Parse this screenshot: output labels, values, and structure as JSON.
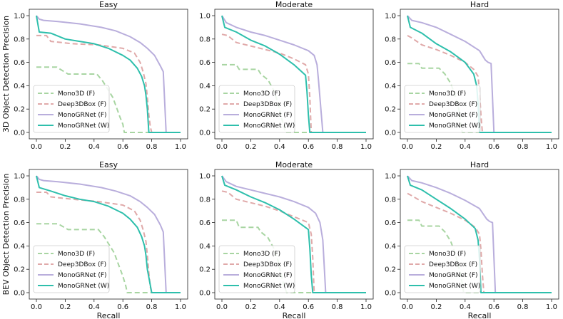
{
  "chart_data": {
    "type": "line",
    "rows": [
      {
        "ylabel": "3D Object Detection Precision",
        "xlabel": ""
      },
      {
        "ylabel": "BEV Object Detection Precision",
        "xlabel": "Recall"
      }
    ],
    "x_ticks": [
      "0.0",
      "0.2",
      "0.4",
      "0.6",
      "0.8",
      "1.0"
    ],
    "y_ticks": [
      "0.0",
      "0.2",
      "0.4",
      "0.6",
      "0.8",
      "1.0"
    ],
    "xlim": [
      0,
      1
    ],
    "ylim": [
      0,
      1
    ],
    "legend_position": "lower-left",
    "series_styles": [
      {
        "name": "Mono3D (F)",
        "color": "#a8d5a2",
        "dash": "dashed"
      },
      {
        "name": "Deep3DBox (F)",
        "color": "#e0a9a9",
        "dash": "dashed"
      },
      {
        "name": "MonoGRNet (F)",
        "color": "#b9aedc",
        "dash": "solid"
      },
      {
        "name": "MonoGRNet (W)",
        "color": "#2ebfac",
        "dash": "solid"
      }
    ],
    "panels": [
      {
        "title": "Easy",
        "row": 0,
        "col": 0,
        "series": [
          {
            "name": "Mono3D (F)",
            "x": [
              0,
              0.14,
              0.22,
              0.42,
              0.46,
              0.49,
              0.53,
              0.56,
              0.58,
              0.6,
              0.61,
              1.0
            ],
            "y": [
              0.56,
              0.56,
              0.5,
              0.5,
              0.44,
              0.38,
              0.3,
              0.2,
              0.13,
              0.07,
              0.0,
              0.0
            ]
          },
          {
            "name": "Deep3DBox (F)",
            "x": [
              0,
              0.07,
              0.1,
              0.25,
              0.43,
              0.6,
              0.68,
              0.72,
              0.74,
              0.76,
              0.77,
              0.78,
              0.79,
              0.8,
              1.0
            ],
            "y": [
              0.83,
              0.83,
              0.78,
              0.76,
              0.75,
              0.72,
              0.68,
              0.6,
              0.52,
              0.42,
              0.3,
              0.15,
              0.05,
              0.0,
              1e-09
            ]
          },
          {
            "name": "MonoGRNet (F)",
            "x": [
              0,
              0.02,
              0.05,
              0.15,
              0.3,
              0.45,
              0.55,
              0.65,
              0.72,
              0.77,
              0.82,
              0.86,
              0.88,
              0.9,
              1.0
            ],
            "y": [
              1.0,
              0.97,
              0.96,
              0.95,
              0.93,
              0.9,
              0.87,
              0.82,
              0.77,
              0.72,
              0.66,
              0.57,
              0.52,
              0.0,
              0.0
            ]
          },
          {
            "name": "MonoGRNet (W)",
            "x": [
              0,
              0.02,
              0.1,
              0.2,
              0.3,
              0.4,
              0.5,
              0.6,
              0.65,
              0.7,
              0.73,
              0.75,
              0.76,
              0.77,
              0.78,
              1.0
            ],
            "y": [
              1.0,
              0.86,
              0.85,
              0.8,
              0.78,
              0.76,
              0.72,
              0.66,
              0.62,
              0.55,
              0.48,
              0.4,
              0.32,
              0.2,
              0.0,
              0.0
            ]
          }
        ]
      },
      {
        "title": "Moderate",
        "row": 0,
        "col": 1,
        "series": [
          {
            "name": "Mono3D (F)",
            "x": [
              0,
              0.1,
              0.12,
              0.25,
              0.27,
              0.32,
              0.36,
              0.39,
              0.41,
              0.43,
              0.44,
              1.0
            ],
            "y": [
              0.58,
              0.58,
              0.54,
              0.54,
              0.5,
              0.45,
              0.36,
              0.25,
              0.14,
              0.05,
              0.0,
              0.0
            ]
          },
          {
            "name": "Deep3DBox (F)",
            "x": [
              0,
              0.04,
              0.1,
              0.2,
              0.3,
              0.4,
              0.5,
              0.58,
              0.6,
              0.61,
              0.62,
              1.0
            ],
            "y": [
              0.84,
              0.83,
              0.77,
              0.74,
              0.71,
              0.68,
              0.63,
              0.58,
              0.5,
              0.3,
              0.0,
              0.0
            ]
          },
          {
            "name": "MonoGRNet (F)",
            "x": [
              0,
              0.03,
              0.1,
              0.2,
              0.3,
              0.4,
              0.5,
              0.6,
              0.64,
              0.66,
              0.67,
              0.7,
              1.0
            ],
            "y": [
              1.0,
              0.94,
              0.9,
              0.86,
              0.83,
              0.79,
              0.75,
              0.7,
              0.66,
              0.58,
              0.45,
              0.0,
              0.0
            ]
          },
          {
            "name": "MonoGRNet (W)",
            "x": [
              0,
              0.02,
              0.1,
              0.2,
              0.3,
              0.4,
              0.5,
              0.58,
              0.59,
              0.6,
              0.61,
              1.0
            ],
            "y": [
              1.0,
              0.9,
              0.86,
              0.79,
              0.74,
              0.67,
              0.58,
              0.49,
              0.35,
              0.15,
              0.0,
              0.0
            ]
          }
        ]
      },
      {
        "title": "Hard",
        "row": 0,
        "col": 2,
        "series": [
          {
            "name": "Mono3D (F)",
            "x": [
              0,
              0.08,
              0.1,
              0.22,
              0.26,
              0.3,
              0.33,
              0.36,
              0.37,
              0.38,
              1.0
            ],
            "y": [
              0.59,
              0.59,
              0.55,
              0.55,
              0.5,
              0.42,
              0.32,
              0.18,
              0.08,
              0.0,
              0.0
            ]
          },
          {
            "name": "Deep3DBox (F)",
            "x": [
              0,
              0.03,
              0.1,
              0.2,
              0.3,
              0.4,
              0.46,
              0.49,
              0.5,
              0.51,
              0.52,
              1.0
            ],
            "y": [
              0.83,
              0.81,
              0.75,
              0.71,
              0.66,
              0.6,
              0.54,
              0.48,
              0.35,
              0.15,
              0.0,
              0.0
            ]
          },
          {
            "name": "MonoGRNet (F)",
            "x": [
              0,
              0.03,
              0.1,
              0.2,
              0.3,
              0.4,
              0.5,
              0.54,
              0.56,
              0.58,
              0.59,
              0.6,
              1.0
            ],
            "y": [
              1.0,
              0.96,
              0.94,
              0.9,
              0.84,
              0.78,
              0.7,
              0.62,
              0.6,
              0.59,
              0.3,
              0.0,
              0.0
            ]
          },
          {
            "name": "MonoGRNet (W)",
            "x": [
              0,
              0.02,
              0.1,
              0.2,
              0.3,
              0.4,
              0.46,
              0.48,
              0.49,
              0.5,
              1.0
            ],
            "y": [
              1.0,
              0.9,
              0.85,
              0.76,
              0.69,
              0.6,
              0.5,
              0.4,
              0.25,
              0.0,
              0.0
            ]
          }
        ]
      },
      {
        "title": "Easy",
        "row": 1,
        "col": 0,
        "series": [
          {
            "name": "Mono3D (F)",
            "x": [
              0,
              0.15,
              0.22,
              0.43,
              0.47,
              0.5,
              0.54,
              0.57,
              0.6,
              0.62,
              0.63,
              1.0
            ],
            "y": [
              0.59,
              0.59,
              0.54,
              0.54,
              0.48,
              0.42,
              0.34,
              0.24,
              0.14,
              0.06,
              0.0,
              0.0
            ]
          },
          {
            "name": "Deep3DBox (F)",
            "x": [
              0,
              0.07,
              0.1,
              0.25,
              0.43,
              0.6,
              0.68,
              0.72,
              0.74,
              0.76,
              0.77,
              0.78,
              0.79,
              0.8,
              1.0
            ],
            "y": [
              0.86,
              0.86,
              0.82,
              0.8,
              0.78,
              0.75,
              0.7,
              0.62,
              0.54,
              0.44,
              0.32,
              0.17,
              0.05,
              0.0,
              0.0
            ]
          },
          {
            "name": "MonoGRNet (F)",
            "x": [
              0,
              0.02,
              0.05,
              0.15,
              0.3,
              0.45,
              0.55,
              0.65,
              0.72,
              0.77,
              0.82,
              0.86,
              0.88,
              0.9,
              1.0
            ],
            "y": [
              1.0,
              0.97,
              0.96,
              0.95,
              0.93,
              0.9,
              0.87,
              0.83,
              0.78,
              0.73,
              0.67,
              0.58,
              0.52,
              0.0,
              0.0
            ]
          },
          {
            "name": "MonoGRNet (W)",
            "x": [
              0,
              0.02,
              0.1,
              0.2,
              0.3,
              0.4,
              0.5,
              0.6,
              0.65,
              0.7,
              0.73,
              0.75,
              0.76,
              0.77,
              0.8,
              1.0
            ],
            "y": [
              1.0,
              0.9,
              0.87,
              0.83,
              0.8,
              0.78,
              0.74,
              0.68,
              0.63,
              0.56,
              0.48,
              0.4,
              0.32,
              0.2,
              0.0,
              0.0
            ]
          }
        ]
      },
      {
        "title": "Moderate",
        "row": 1,
        "col": 1,
        "series": [
          {
            "name": "Mono3D (F)",
            "x": [
              0,
              0.1,
              0.12,
              0.25,
              0.27,
              0.32,
              0.36,
              0.39,
              0.41,
              0.43,
              0.45,
              1.0
            ],
            "y": [
              0.62,
              0.62,
              0.56,
              0.56,
              0.52,
              0.47,
              0.38,
              0.27,
              0.16,
              0.06,
              0.0,
              0.0
            ]
          },
          {
            "name": "Deep3DBox (F)",
            "x": [
              0,
              0.04,
              0.1,
              0.2,
              0.3,
              0.4,
              0.5,
              0.6,
              0.62,
              0.63,
              0.64,
              1.0
            ],
            "y": [
              0.87,
              0.86,
              0.8,
              0.77,
              0.74,
              0.7,
              0.65,
              0.6,
              0.5,
              0.3,
              0.0,
              0.0
            ]
          },
          {
            "name": "MonoGRNet (F)",
            "x": [
              0,
              0.03,
              0.1,
              0.2,
              0.3,
              0.4,
              0.5,
              0.6,
              0.65,
              0.68,
              0.7,
              0.72,
              1.0
            ],
            "y": [
              1.0,
              0.95,
              0.91,
              0.88,
              0.85,
              0.82,
              0.78,
              0.73,
              0.68,
              0.6,
              0.45,
              0.0,
              0.0
            ]
          },
          {
            "name": "MonoGRNet (W)",
            "x": [
              0,
              0.02,
              0.1,
              0.2,
              0.3,
              0.4,
              0.5,
              0.6,
              0.61,
              0.62,
              0.63,
              1.0
            ],
            "y": [
              1.0,
              0.92,
              0.88,
              0.82,
              0.77,
              0.71,
              0.63,
              0.54,
              0.38,
              0.15,
              0.0,
              0.0
            ]
          }
        ]
      },
      {
        "title": "Hard",
        "row": 1,
        "col": 2,
        "series": [
          {
            "name": "Mono3D (F)",
            "x": [
              0,
              0.08,
              0.1,
              0.22,
              0.26,
              0.3,
              0.33,
              0.36,
              0.38,
              0.39,
              1.0
            ],
            "y": [
              0.62,
              0.62,
              0.57,
              0.57,
              0.52,
              0.44,
              0.34,
              0.2,
              0.08,
              0.0,
              0.0
            ]
          },
          {
            "name": "Deep3DBox (F)",
            "x": [
              0,
              0.03,
              0.1,
              0.2,
              0.3,
              0.4,
              0.47,
              0.5,
              0.51,
              0.52,
              0.53,
              1.0
            ],
            "y": [
              0.85,
              0.83,
              0.78,
              0.73,
              0.68,
              0.62,
              0.56,
              0.5,
              0.37,
              0.16,
              0.0,
              0.0
            ]
          },
          {
            "name": "MonoGRNet (F)",
            "x": [
              0,
              0.03,
              0.1,
              0.2,
              0.3,
              0.4,
              0.5,
              0.55,
              0.57,
              0.59,
              0.6,
              0.61,
              1.0
            ],
            "y": [
              1.0,
              0.96,
              0.94,
              0.9,
              0.85,
              0.79,
              0.72,
              0.63,
              0.61,
              0.6,
              0.3,
              0.0,
              0.0
            ]
          },
          {
            "name": "MonoGRNet (W)",
            "x": [
              0,
              0.02,
              0.1,
              0.2,
              0.3,
              0.4,
              0.47,
              0.49,
              0.5,
              0.51,
              1.0
            ],
            "y": [
              1.0,
              0.92,
              0.88,
              0.8,
              0.72,
              0.63,
              0.55,
              0.45,
              0.28,
              0.0,
              0.0
            ]
          }
        ]
      }
    ]
  }
}
